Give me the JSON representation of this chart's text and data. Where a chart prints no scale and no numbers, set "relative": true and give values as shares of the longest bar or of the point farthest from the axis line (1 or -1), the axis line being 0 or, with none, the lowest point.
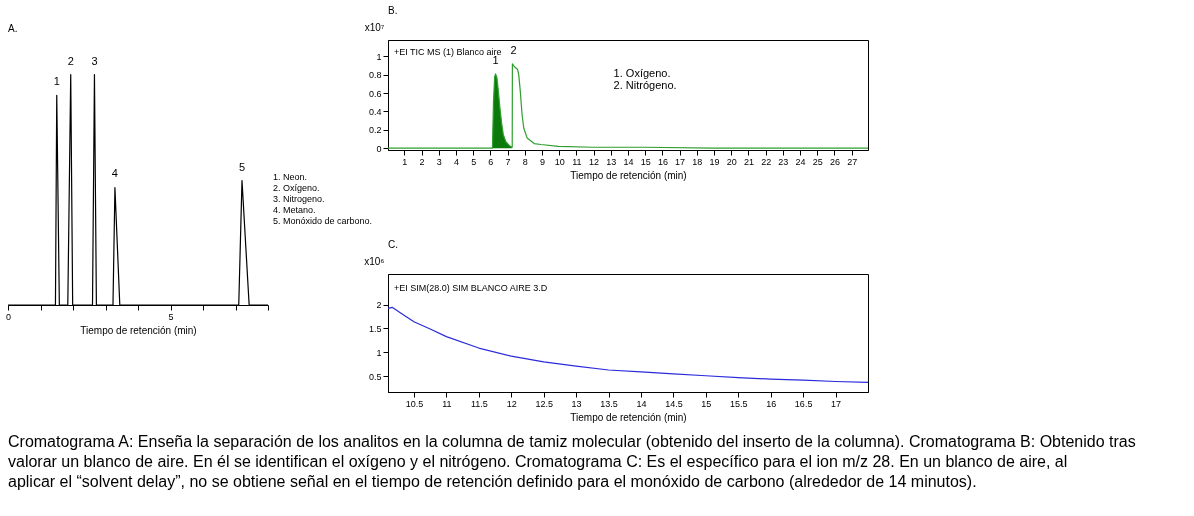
{
  "chart_data": [
    {
      "type": "line",
      "title": "A.",
      "xlabel": "Tiempo de retención (min)",
      "relative": true,
      "xlim": [
        0,
        8
      ],
      "xticks": [
        0,
        {
          "value": 1,
          "label": null
        },
        {
          "value": 2,
          "label": null
        },
        {
          "value": 3,
          "label": null
        },
        {
          "value": 4,
          "label": null
        },
        5,
        {
          "value": 6,
          "label": null
        },
        {
          "value": 7,
          "label": null
        },
        {
          "value": 8,
          "label": null
        }
      ],
      "tick_labels": "x",
      "grid": false,
      "series": [
        {
          "color": "#000000",
          "x": [
            0,
            1.46,
            1.5,
            1.58,
            1.84,
            1.93,
            1.99,
            2.6,
            2.66,
            2.72,
            3.23,
            3.29,
            3.44,
            7.1,
            7.2,
            7.42,
            8
          ],
          "values": [
            0,
            0,
            0.91,
            0,
            0,
            1.0,
            0,
            0,
            1.0,
            0,
            0,
            0.51,
            0,
            0,
            0.54,
            0,
            0
          ]
        }
      ],
      "annotations": [
        {
          "text": "1",
          "x": 1.5,
          "y": 0.91
        },
        {
          "text": "2",
          "x": 1.93,
          "y": 1.0
        },
        {
          "text": "3",
          "x": 2.66,
          "y": 1.0
        },
        {
          "text": "4",
          "x": 3.29,
          "y": 0.51
        },
        {
          "text": "5",
          "x": 7.2,
          "y": 0.54
        },
        "1. Neon.",
        "2. Oxígeno.",
        "3. Nitrogeno.",
        "4. Metano.",
        "5. Monóxido de carbono."
      ]
    },
    {
      "type": "line",
      "title": "B.",
      "xlabel": "Tiempo de retención (min)",
      "ylabel": "x10⁷",
      "xlim": [
        0.05,
        27.95
      ],
      "xticks": [
        1,
        2,
        3,
        4,
        5,
        6,
        7,
        8,
        9,
        10,
        11,
        12,
        13,
        14,
        15,
        16,
        17,
        18,
        19,
        20,
        21,
        22,
        23,
        24,
        25,
        26,
        27
      ],
      "ylim": [
        -0.02,
        1.18
      ],
      "yticks": [
        0,
        0.2,
        0.4,
        0.6,
        0.8,
        1
      ],
      "grid": false,
      "series": [
        {
          "type": "area",
          "color": "#0b7a0b",
          "x": [
            6.12,
            6.18,
            6.25,
            6.3,
            6.38,
            6.45,
            6.55,
            6.65,
            6.75,
            6.9,
            7.1,
            7.25
          ],
          "values": [
            0,
            0.5,
            0.78,
            0.81,
            0.77,
            0.65,
            0.45,
            0.28,
            0.15,
            0.07,
            0.03,
            0.01
          ]
        },
        {
          "type": "line",
          "color": "#2e9e2e",
          "x": [
            0.05,
            6.1,
            6.12,
            6.18,
            6.25,
            6.3,
            6.38,
            6.45,
            6.55,
            6.65,
            6.75,
            6.9,
            7.1,
            7.25,
            7.27,
            7.28,
            7.35,
            7.45,
            7.58,
            7.65,
            7.74,
            7.84,
            7.94,
            8.14,
            8.54,
            8.94,
            9.95,
            11.95,
            14.96,
            18.97,
            27.95
          ],
          "values": [
            0,
            0,
            0,
            0.5,
            0.78,
            0.81,
            0.77,
            0.65,
            0.45,
            0.28,
            0.15,
            0.07,
            0.03,
            0.01,
            0.01,
            0.92,
            0.9,
            0.88,
            0.86,
            0.8,
            0.62,
            0.37,
            0.22,
            0.11,
            0.05,
            0.04,
            0.02,
            0.01,
            0.01,
            0,
            0
          ]
        }
      ],
      "annotations": [
        {
          "text": "1",
          "x": 6.3,
          "y": 0.81
        },
        {
          "text": "2",
          "x": 7.35,
          "y": 0.92
        },
        "+EI TIC MS (1) Blanco aire",
        "1. Oxígeno.",
        "2. Nitrógeno."
      ]
    },
    {
      "type": "line",
      "title": "C.",
      "xlabel": "Tiempo de retención (min)",
      "ylabel": "x10⁶",
      "xlim": [
        10.1,
        17.5
      ],
      "xticks": [
        10.5,
        11,
        11.5,
        12,
        12.5,
        13,
        13.5,
        14,
        14.5,
        15,
        15.5,
        16,
        16.5,
        17
      ],
      "ylim": [
        0.17,
        2.64
      ],
      "yticks": [
        0.5,
        1,
        1.5,
        2
      ],
      "grid": false,
      "series": [
        {
          "color": "#2b2bdb",
          "x": [
            10.1,
            10.17,
            10.3,
            10.5,
            10.75,
            11,
            11.5,
            12,
            12.5,
            13,
            13.5,
            14,
            14.5,
            15,
            15.5,
            16,
            16.5,
            17,
            17.5
          ],
          "values": [
            1.92,
            1.94,
            1.82,
            1.64,
            1.49,
            1.33,
            1.09,
            0.92,
            0.8,
            0.71,
            0.63,
            0.59,
            0.55,
            0.51,
            0.47,
            0.44,
            0.42,
            0.39,
            0.37
          ]
        }
      ],
      "annotations": [
        "+EI SIM(28.0) SIM BLANCO AIRE  3.D",
        "Cromatograma A: Enseña la separación de los analitos en la columna de tamiz molecular (obtenido del inserto de la columna). Cromatograma B: Obtenido tras valorar un blanco de aire. En él se identifican el oxígeno y el nitrógeno. Cromatograma C: Es el específico para el ion m/z 28. En un blanco de aire, al aplicar el “solvent delay”, no se obtiene señal en el tiempo de retención definido para el monóxido de carbono (alrededor de 14 minutos)."
      ]
    }
  ]
}
